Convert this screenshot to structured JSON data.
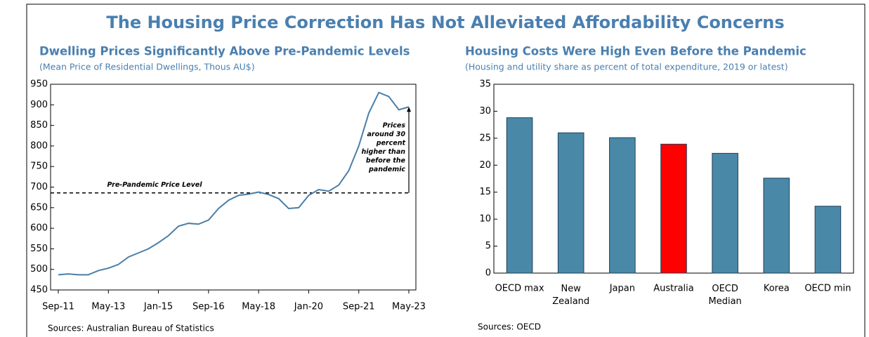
{
  "title": "The Housing Price Correction Has Not Alleviated Affordability Concerns",
  "chart_data": [
    {
      "type": "line",
      "title": "Dwelling Prices Significantly Above Pre-Pandemic Levels",
      "subtitle": "(Mean Price of Residential Dwellings, Thous AU$)",
      "categories": [
        "Sep-11",
        null,
        null,
        null,
        null,
        "May-13",
        null,
        null,
        null,
        null,
        "Jan-15",
        null,
        null,
        null,
        null,
        "Sep-16",
        null,
        null,
        null,
        null,
        "May-18",
        null,
        null,
        null,
        null,
        "Jan-20",
        null,
        null,
        null,
        null,
        "Sep-21",
        null,
        null,
        null,
        null,
        "May-23"
      ],
      "series": [
        {
          "name": "Mean Price of Residential Dwellings",
          "color": "#4a7ea8",
          "values": [
            487,
            489,
            487,
            487,
            497,
            503,
            512,
            530,
            540,
            550,
            565,
            582,
            605,
            612,
            610,
            620,
            648,
            668,
            680,
            683,
            688,
            682,
            672,
            648,
            650,
            680,
            694,
            690,
            705,
            740,
            800,
            880,
            930,
            920,
            888,
            895
          ]
        }
      ],
      "ylim": [
        450,
        950
      ],
      "yticks": [
        450,
        500,
        550,
        600,
        650,
        700,
        750,
        800,
        850,
        900,
        950
      ],
      "reference_line": {
        "value": 686,
        "label": "Pre-Pandemic Price Level"
      },
      "annotation": [
        "Prices",
        "around 30",
        "percent",
        "higher than",
        "before the",
        "pandemic"
      ],
      "source": "Sources: Australian Bureau of Statistics"
    },
    {
      "type": "bar",
      "title": "Housing Costs Were High Even Before the Pandemic",
      "subtitle": "(Housing and utility share as percent of total expenditure, 2019 or latest)",
      "categories": [
        "OECD max",
        "New Zealand",
        "Japan",
        "Australia",
        "OECD Median",
        "Korea",
        "OECD min"
      ],
      "values": [
        28.8,
        26.0,
        25.1,
        23.9,
        22.2,
        17.6,
        12.4
      ],
      "colors": [
        "#4a88a8",
        "#4a88a8",
        "#4a88a8",
        "#ff0000",
        "#4a88a8",
        "#4a88a8",
        "#4a88a8"
      ],
      "ylim": [
        0,
        35
      ],
      "yticks": [
        0,
        5,
        10,
        15,
        20,
        25,
        30,
        35
      ],
      "source": "Sources: OECD"
    }
  ]
}
